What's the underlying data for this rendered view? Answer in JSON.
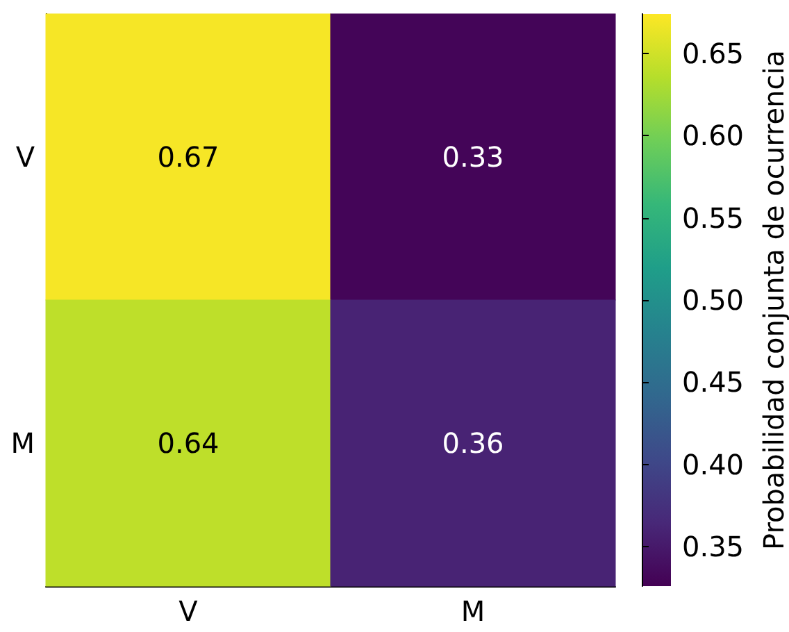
{
  "chart_data": {
    "type": "heatmap",
    "categories": [
      "V",
      "M"
    ],
    "y_categories": [
      "V",
      "M"
    ],
    "cells": [
      [
        0.67,
        0.33
      ],
      [
        0.64,
        0.36
      ]
    ],
    "data_labels": true,
    "clim": [
      0.326,
      0.674
    ],
    "cticks": [
      0.35,
      {
        "value": 0.4,
        "label": "0.40"
      },
      0.45,
      {
        "value": 0.5,
        "label": "0.50"
      },
      0.55,
      {
        "value": 0.6,
        "label": "0.60"
      },
      0.65
    ],
    "clabel": "Probabilidad conjunta de ocurrencia"
  }
}
